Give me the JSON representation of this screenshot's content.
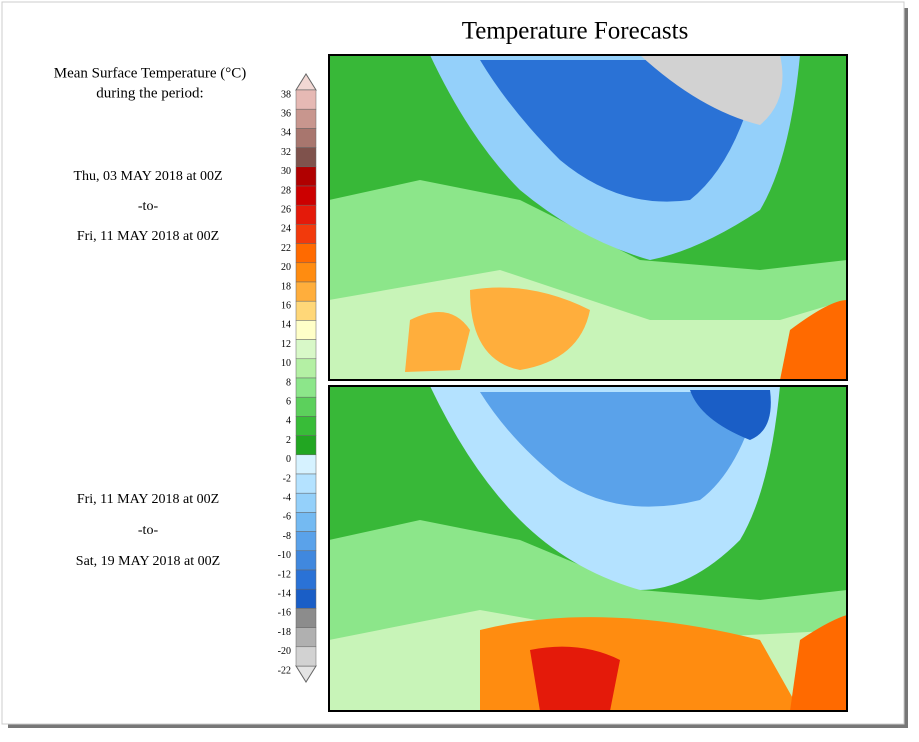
{
  "title": "Temperature Forecasts",
  "legend": {
    "label_lines": [
      "Mean Surface Temperature (°C)",
      "during the period:"
    ],
    "ticks": [
      38,
      36,
      34,
      32,
      30,
      28,
      26,
      24,
      22,
      20,
      18,
      16,
      14,
      12,
      10,
      8,
      6,
      4,
      2,
      0,
      -2,
      -4,
      -6,
      -8,
      -10,
      -12,
      -14,
      -16,
      -18,
      -20,
      -22
    ],
    "colors": [
      "#e6b9b4",
      "#c8968e",
      "#a8766e",
      "#7f524c",
      "#b00000",
      "#cc0000",
      "#e41a0a",
      "#f23a0c",
      "#ff6a00",
      "#ff8c10",
      "#ffae3c",
      "#ffd778",
      "#ffffc8",
      "#d8f8c8",
      "#b4f0a4",
      "#8ce68a",
      "#5cd05c",
      "#38bc38",
      "#22a622",
      "#d6f2ff",
      "#b4e2ff",
      "#94d0fa",
      "#74baf2",
      "#5aa2ea",
      "#4088de",
      "#2a72d6",
      "#1a5ec6",
      "#8c8c8c",
      "#b0b0b0",
      "#d2d2d2"
    ]
  },
  "periods": [
    {
      "start": "Thu, 03 MAY 2018 at 00Z",
      "to": "-to-",
      "end": "Fri, 11 MAY 2018 at 00Z"
    },
    {
      "start": "Fri, 11 MAY 2018 at 00Z",
      "to": "-to-",
      "end": "Sat, 19 MAY 2018 at 00Z"
    }
  ]
}
